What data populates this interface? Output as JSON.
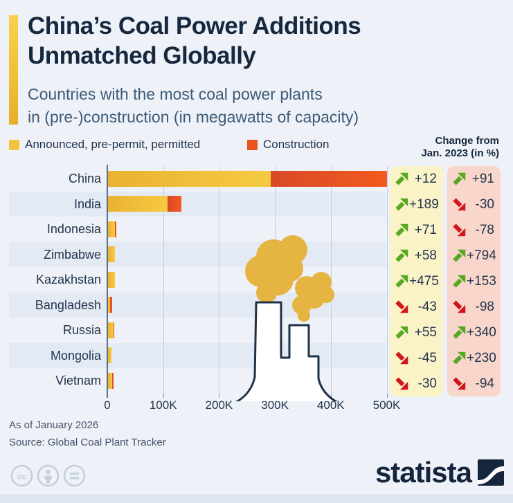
{
  "header": {
    "title_line1": "China’s Coal Power Additions",
    "title_line2": "Unmatched Globally",
    "subtitle_line1": "Countries with the most coal power plants",
    "subtitle_line2": "in (pre-)construction (in megawatts of capacity)"
  },
  "legend": {
    "announced_label": "Announced, pre-permit, permitted",
    "construction_label": "Construction"
  },
  "change_header": {
    "line1": "Change from",
    "line2": "Jan. 2023 (in %)"
  },
  "chart_data": {
    "type": "bar",
    "orientation": "horizontal",
    "stacked": true,
    "unit": "megawatts of capacity",
    "series_names": [
      "Announced, pre-permit, permitted",
      "Construction"
    ],
    "x_ticks": [
      "0",
      "100K",
      "200K",
      "300K",
      "400K",
      "500K"
    ],
    "x_max_mw": 500000,
    "grid": true,
    "rows": [
      {
        "country": "China",
        "announced_mw": 291000,
        "construction_mw": 209000,
        "change_announced": {
          "dir": "up",
          "value": "+12"
        },
        "change_construction": {
          "dir": "up",
          "value": "+91"
        }
      },
      {
        "country": "India",
        "announced_mw": 106000,
        "construction_mw": 25000,
        "change_announced": {
          "dir": "up",
          "value": "+189"
        },
        "change_construction": {
          "dir": "down",
          "value": "-30"
        }
      },
      {
        "country": "Indonesia",
        "announced_mw": 12000,
        "construction_mw": 3000,
        "change_announced": {
          "dir": "up",
          "value": "+71"
        },
        "change_construction": {
          "dir": "down",
          "value": "-78"
        }
      },
      {
        "country": "Zimbabwe",
        "announced_mw": 12000,
        "construction_mw": 0,
        "change_announced": {
          "dir": "up",
          "value": "+58"
        },
        "change_construction": {
          "dir": "up",
          "value": "+794"
        }
      },
      {
        "country": "Kazakhstan",
        "announced_mw": 12000,
        "construction_mw": 0,
        "change_announced": {
          "dir": "up",
          "value": "+475"
        },
        "change_construction": {
          "dir": "up",
          "value": "+153"
        }
      },
      {
        "country": "Bangladesh",
        "announced_mw": 4000,
        "construction_mw": 3000,
        "change_announced": {
          "dir": "down",
          "value": "-43"
        },
        "change_construction": {
          "dir": "down",
          "value": "-98"
        }
      },
      {
        "country": "Russia",
        "announced_mw": 10000,
        "construction_mw": 1000,
        "change_announced": {
          "dir": "up",
          "value": "+55"
        },
        "change_construction": {
          "dir": "up",
          "value": "+340"
        }
      },
      {
        "country": "Mongolia",
        "announced_mw": 6000,
        "construction_mw": 0,
        "change_announced": {
          "dir": "down",
          "value": "-45"
        },
        "change_construction": {
          "dir": "up",
          "value": "+230"
        }
      },
      {
        "country": "Vietnam",
        "announced_mw": 7000,
        "construction_mw": 3000,
        "change_announced": {
          "dir": "down",
          "value": "-30"
        },
        "change_construction": {
          "dir": "down",
          "value": "-94"
        }
      }
    ]
  },
  "colors": {
    "announced": "#f3c340",
    "construction": "#ea5420",
    "up_arrow": "#55a81f",
    "down_arrow": "#d2151b",
    "announced_column_bg": "#faf3c8",
    "construction_column_bg": "#f8d6cb",
    "title": "#16283e",
    "background": "#eef1f7"
  },
  "footer": {
    "note": "As of January 2026",
    "source": "Source: Global Coal Plant Tracker",
    "brand": "statista"
  }
}
